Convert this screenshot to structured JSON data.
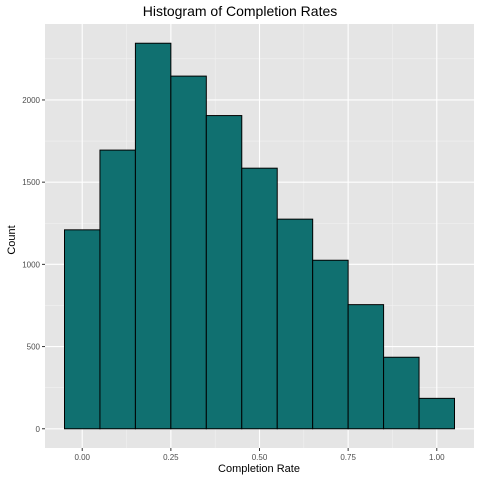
{
  "chart_data": {
    "type": "bar",
    "title": "Histogram of Completion Rates",
    "xlabel": "Completion Rate",
    "ylabel": "Count",
    "x": [
      0.0,
      0.1,
      0.2,
      0.3,
      0.4,
      0.5,
      0.6,
      0.7,
      0.8,
      0.9,
      1.0
    ],
    "bin_width": 0.1,
    "values": [
      1210,
      1695,
      2345,
      2145,
      1905,
      1585,
      1275,
      1025,
      755,
      435,
      185
    ],
    "xlim": [
      -0.105,
      1.105
    ],
    "ylim": [
      -117,
      2462
    ],
    "x_ticks": [
      0.0,
      0.25,
      0.5,
      0.75,
      1.0
    ],
    "x_tick_labels": [
      "0.00",
      "0.25",
      "0.50",
      "0.75",
      "1.00"
    ],
    "y_ticks": [
      0,
      500,
      1000,
      1500,
      2000
    ],
    "y_tick_labels": [
      "0",
      "500",
      "1000",
      "1500",
      "2000"
    ],
    "bar_color": "#107070",
    "bar_outline": "#000000",
    "panel_background": "#e5e5e5",
    "grid": true,
    "legend": "none"
  }
}
